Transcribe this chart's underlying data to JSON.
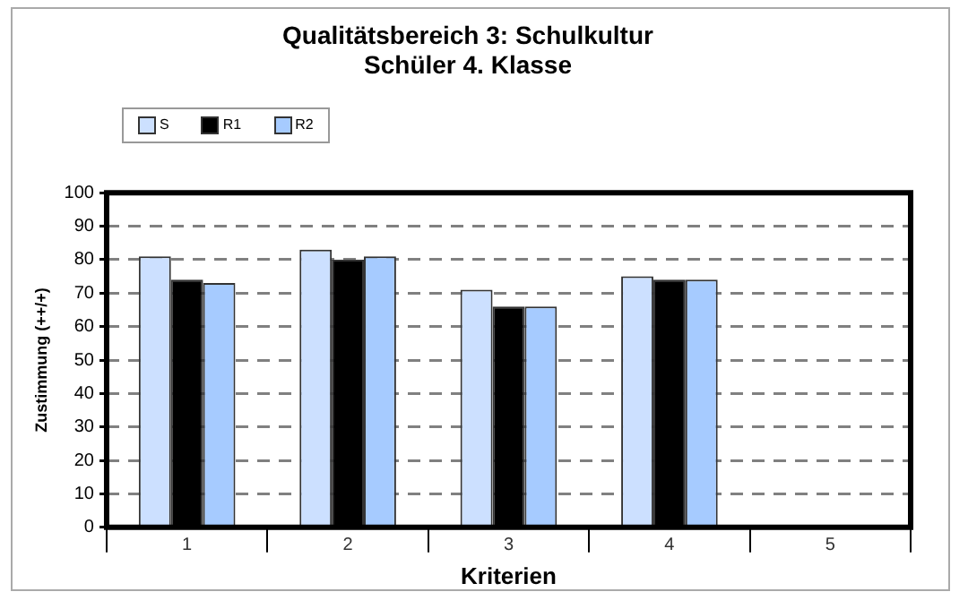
{
  "chart_data": {
    "type": "bar",
    "title": "Qualitätsbereich 3: Schulkultur",
    "subtitle": "Schüler 4. Klasse",
    "xlabel": "Kriterien",
    "ylabel": "Zustimmung (++/+)",
    "categories": [
      "1",
      "2",
      "3",
      "4",
      "5"
    ],
    "series": [
      {
        "name": "S",
        "color": "#cce0ff",
        "values": [
          81,
          83,
          71,
          75,
          null
        ]
      },
      {
        "name": "R1",
        "color": "#000000",
        "values": [
          74,
          80,
          66,
          74,
          null
        ]
      },
      {
        "name": "R2",
        "color": "#a6cbff",
        "values": [
          73,
          81,
          66,
          74,
          null
        ]
      }
    ],
    "ylim": [
      0,
      100
    ],
    "yticks": [
      0,
      10,
      20,
      30,
      40,
      50,
      60,
      70,
      80,
      90,
      100
    ],
    "grid": "y",
    "legend": "top left"
  }
}
